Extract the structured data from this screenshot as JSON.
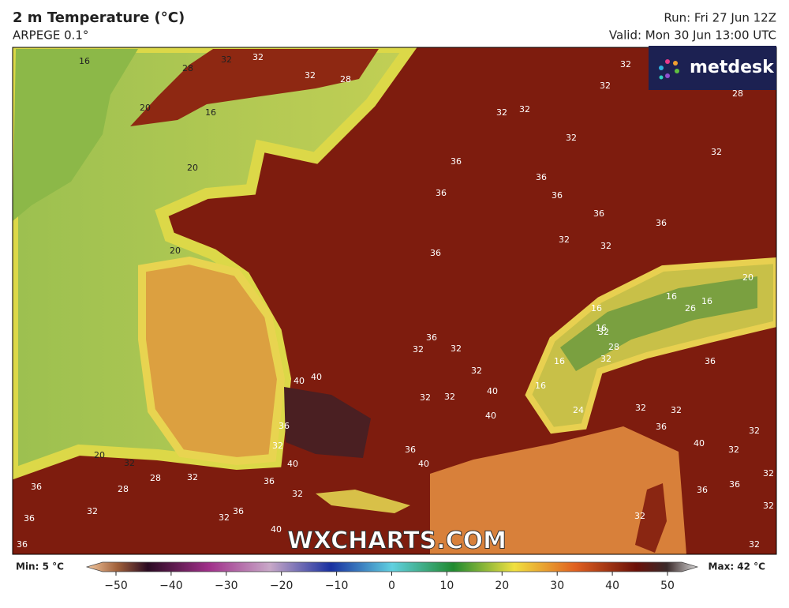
{
  "header": {
    "title": "2 m Temperature (°C)",
    "model": "ARPEGE 0.1°",
    "run": "Run: Fri 27 Jun 12Z",
    "valid": "Valid: Mon 30 Jun 13:00 UTC"
  },
  "logo": "metdesk",
  "watermark": "WXCHARTS.COM",
  "map": {
    "contour_labels": [
      16,
      32,
      32,
      28,
      32,
      28,
      20,
      16,
      32,
      32,
      32,
      32,
      32,
      32,
      28,
      20,
      36,
      36,
      36,
      36,
      36,
      36,
      32,
      32,
      36,
      20,
      36,
      32,
      32,
      16,
      16,
      32,
      16,
      16,
      26,
      28,
      32,
      16,
      36,
      20,
      32,
      40,
      40,
      40,
      40,
      32,
      32,
      16,
      24,
      32,
      32,
      36,
      32,
      36,
      32,
      20,
      32,
      40,
      36,
      40,
      40,
      32,
      28,
      32,
      36,
      32,
      36,
      36,
      32,
      36,
      28,
      32,
      36,
      32,
      36,
      32,
      32,
      40,
      36,
      32
    ]
  },
  "colorbar": {
    "min_label": "Min: 5 °C",
    "max_label": "Max: 42 °C",
    "ticks": [
      {
        "value": -50,
        "label": "−50"
      },
      {
        "value": -40,
        "label": "−40"
      },
      {
        "value": -30,
        "label": "−30"
      },
      {
        "value": -20,
        "label": "−20"
      },
      {
        "value": -10,
        "label": "−10"
      },
      0,
      10,
      20,
      30,
      40,
      50
    ]
  }
}
